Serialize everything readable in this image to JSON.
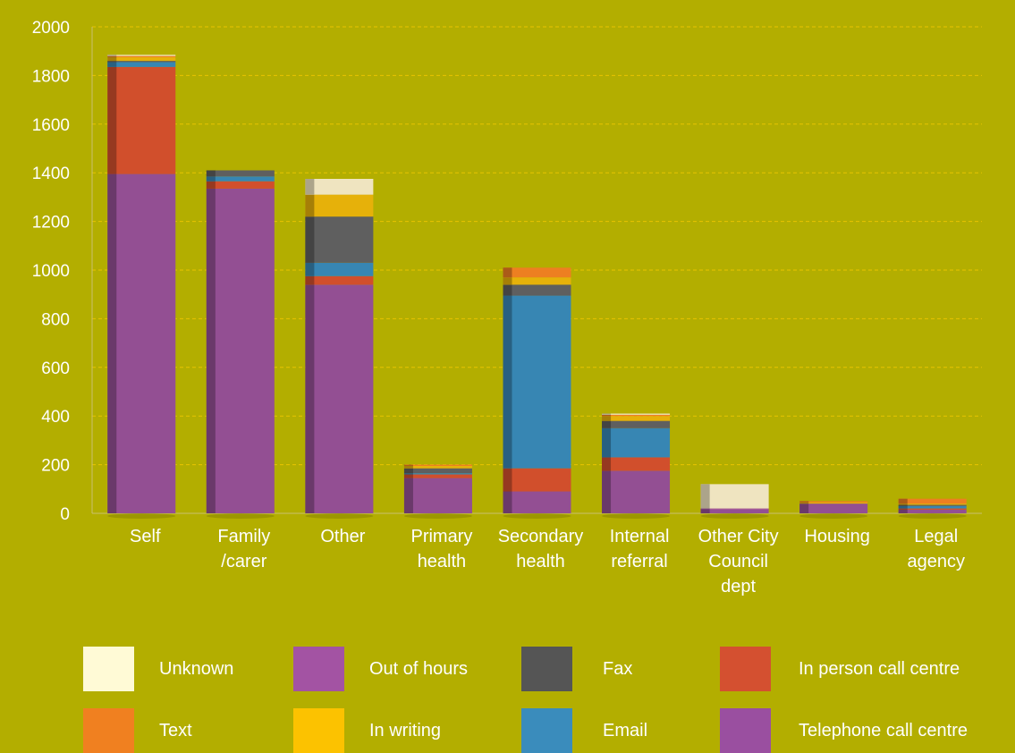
{
  "chart_data": {
    "type": "bar",
    "stacked": true,
    "title": "",
    "xlabel": "",
    "ylabel": "",
    "ylim": [
      0,
      2000
    ],
    "yticks": [
      0,
      200,
      400,
      600,
      800,
      1000,
      1200,
      1400,
      1600,
      1800,
      2000
    ],
    "grid": true,
    "legend_position": "bottom",
    "categories": [
      "Self",
      "Family /carer",
      "Other",
      "Primary health",
      "Secondary health",
      "Internal referral",
      "Other City Council dept",
      "Housing",
      "Legal agency"
    ],
    "category_label_lines": [
      [
        "Self"
      ],
      [
        "Family",
        "/carer"
      ],
      [
        "Other"
      ],
      [
        "Primary",
        "health"
      ],
      [
        "Secondary",
        "health"
      ],
      [
        "Internal",
        "referral"
      ],
      [
        "Other City",
        "Council",
        "dept"
      ],
      [
        "Housing"
      ],
      [
        "Legal",
        "agency"
      ]
    ],
    "series": [
      {
        "name": "Telephone call centre",
        "color": "#934f93",
        "values": [
          1395,
          1335,
          940,
          145,
          90,
          175,
          15,
          40,
          15
        ]
      },
      {
        "name": "In person call centre",
        "color": "#d14f2c",
        "values": [
          440,
          30,
          35,
          15,
          95,
          55,
          0,
          0,
          5
        ]
      },
      {
        "name": "Email",
        "color": "#3786b3",
        "values": [
          20,
          20,
          55,
          5,
          710,
          120,
          0,
          0,
          10
        ]
      },
      {
        "name": "Fax",
        "color": "#5f5f5f",
        "values": [
          5,
          25,
          190,
          20,
          45,
          30,
          0,
          0,
          5
        ]
      },
      {
        "name": "In writing",
        "color": "#e6b10a",
        "values": [
          15,
          0,
          90,
          10,
          30,
          20,
          0,
          5,
          5
        ]
      },
      {
        "name": "Text",
        "color": "#ed7f21",
        "values": [
          5,
          0,
          0,
          5,
          40,
          5,
          0,
          5,
          20
        ]
      },
      {
        "name": "Out of hours",
        "color": "#a353a3",
        "values": [
          0,
          0,
          0,
          0,
          0,
          0,
          5,
          0,
          0
        ]
      },
      {
        "name": "Unknown",
        "color": "#efe4c0",
        "values": [
          5,
          0,
          65,
          0,
          0,
          5,
          100,
          0,
          0
        ]
      }
    ]
  },
  "legend": [
    {
      "label": "Unknown",
      "color": "#fffad6"
    },
    {
      "label": "Out of hours",
      "color": "#a353a3"
    },
    {
      "label": "Fax",
      "color": "#555555"
    },
    {
      "label": "In person call centre",
      "color": "#d45030"
    },
    {
      "label": "Text",
      "color": "#f08020"
    },
    {
      "label": "In writing",
      "color": "#fcc200"
    },
    {
      "label": "Email",
      "color": "#3a8cbc"
    },
    {
      "label": "Telephone call centre",
      "color": "#9a4fa0"
    }
  ]
}
